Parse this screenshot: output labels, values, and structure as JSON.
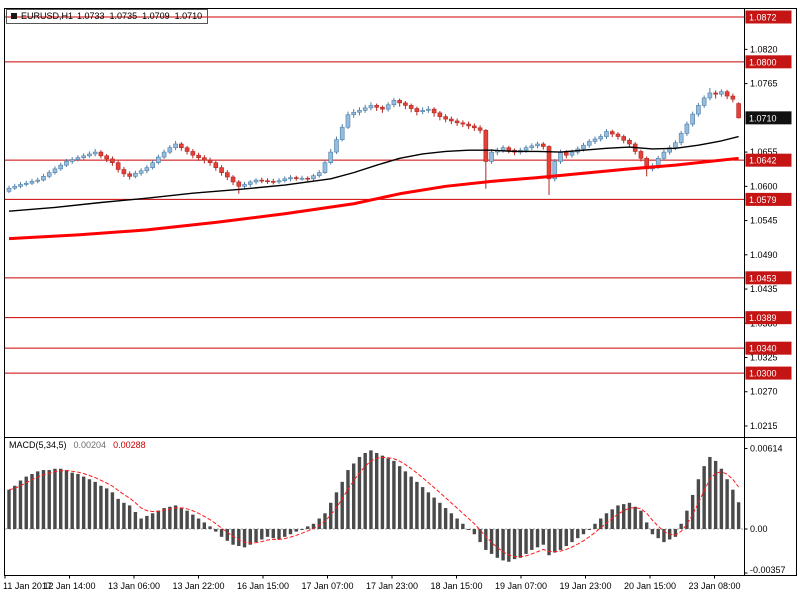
{
  "header": {
    "symbol": "EURUSD,H1",
    "open": "1.0733",
    "high": "1.0735",
    "low": "1.0709",
    "close": "1.0710"
  },
  "indicator": {
    "name": "MACD(5,34,5)",
    "value": "0.00204",
    "signal": "0.00288"
  },
  "colors": {
    "level": "#cc0000",
    "level_badge": "#c41414",
    "current_badge": "#111111",
    "bull_fill": "#93bcde",
    "bull_stroke": "#4f7ea6",
    "bear_fill": "#e24038",
    "bear_stroke": "#b22622",
    "ma_black": "#000000",
    "ma_red": "#ff0000",
    "hist": "#4a4a4a",
    "signal": "#ff1a1a",
    "axis_text": "#000000",
    "frame": "#000000",
    "zero_line": "#aaaaaa"
  },
  "chart_data": [
    {
      "type": "candlestick",
      "symbol": "EURUSD",
      "timeframe": "H1",
      "grid": false,
      "ylim": [
        1.0197,
        1.0886
      ],
      "y_ticks": [
        1.082,
        1.0765,
        1.0655,
        1.06,
        1.0545,
        1.049,
        1.0435,
        1.038,
        1.0325,
        1.027,
        1.0215
      ],
      "levels": [
        1.0872,
        1.08,
        1.0642,
        1.0579,
        1.0453,
        1.0389,
        1.034,
        1.03
      ],
      "current_price": 1.071,
      "x_labels": [
        "11 Jan 2017",
        "12 Jan 14:00",
        "13 Jan 06:00",
        "13 Jan 22:00",
        "16 Jan 15:00",
        "17 Jan 07:00",
        "17 Jan 23:00",
        "18 Jan 15:00",
        "19 Jan 07:00",
        "19 Jan 23:00",
        "20 Jan 15:00",
        "23 Jan 08:00"
      ],
      "ma_black": {
        "name": "moving-average-fast-black",
        "points": [
          [
            0,
            1.056
          ],
          [
            8,
            1.0566
          ],
          [
            16,
            1.0574
          ],
          [
            24,
            1.0581
          ],
          [
            32,
            1.0589
          ],
          [
            40,
            1.0595
          ],
          [
            48,
            1.0602
          ],
          [
            56,
            1.0612
          ],
          [
            60,
            1.0622
          ],
          [
            64,
            1.0634
          ],
          [
            68,
            1.0645
          ],
          [
            72,
            1.0652
          ],
          [
            76,
            1.0656
          ],
          [
            80,
            1.0658
          ],
          [
            84,
            1.0658
          ],
          [
            88,
            1.0656
          ],
          [
            92,
            1.0656
          ],
          [
            96,
            1.0655
          ],
          [
            100,
            1.0658
          ],
          [
            104,
            1.0661
          ],
          [
            108,
            1.0663
          ],
          [
            112,
            1.066
          ],
          [
            116,
            1.0661
          ],
          [
            120,
            1.0666
          ],
          [
            124,
            1.0673
          ],
          [
            127,
            1.068
          ]
        ]
      },
      "ma_red": {
        "name": "moving-average-slow-red",
        "points": [
          [
            0,
            1.0516
          ],
          [
            12,
            1.0522
          ],
          [
            24,
            1.053
          ],
          [
            36,
            1.0542
          ],
          [
            48,
            1.0556
          ],
          [
            60,
            1.0572
          ],
          [
            68,
            1.0588
          ],
          [
            76,
            1.06
          ],
          [
            84,
            1.0608
          ],
          [
            92,
            1.0614
          ],
          [
            100,
            1.0621
          ],
          [
            108,
            1.0628
          ],
          [
            116,
            1.0634
          ],
          [
            122,
            1.064
          ],
          [
            127,
            1.0645
          ]
        ]
      },
      "ohlc": [
        [
          1.0592,
          1.0601,
          1.0589,
          1.0597
        ],
        [
          1.0597,
          1.0604,
          1.0594,
          1.06
        ],
        [
          1.06,
          1.0607,
          1.0597,
          1.0603
        ],
        [
          1.0603,
          1.0609,
          1.06,
          1.0605
        ],
        [
          1.0605,
          1.0612,
          1.0602,
          1.0608
        ],
        [
          1.0608,
          1.0614,
          1.0605,
          1.061
        ],
        [
          1.061,
          1.062,
          1.0608,
          1.0616
        ],
        [
          1.0616,
          1.0626,
          1.0613,
          1.0622
        ],
        [
          1.0622,
          1.0632,
          1.0619,
          1.0628
        ],
        [
          1.0628,
          1.0638,
          1.0625,
          1.0634
        ],
        [
          1.0634,
          1.0644,
          1.0631,
          1.064
        ],
        [
          1.064,
          1.0647,
          1.0636,
          1.0643
        ],
        [
          1.0643,
          1.065,
          1.064,
          1.0646
        ],
        [
          1.0646,
          1.0653,
          1.0643,
          1.0649
        ],
        [
          1.0649,
          1.0656,
          1.0646,
          1.0652
        ],
        [
          1.0652,
          1.066,
          1.0648,
          1.0655
        ],
        [
          1.0655,
          1.0658,
          1.0645,
          1.0649
        ],
        [
          1.0649,
          1.0652,
          1.0639,
          1.0644
        ],
        [
          1.0644,
          1.0648,
          1.0633,
          1.0638
        ],
        [
          1.0638,
          1.0641,
          1.0622,
          1.0627
        ],
        [
          1.0627,
          1.0631,
          1.0615,
          1.062
        ],
        [
          1.062,
          1.0624,
          1.0611,
          1.0616
        ],
        [
          1.0616,
          1.0625,
          1.0613,
          1.0621
        ],
        [
          1.0621,
          1.0629,
          1.0617,
          1.0625
        ],
        [
          1.0625,
          1.0634,
          1.0621,
          1.063
        ],
        [
          1.063,
          1.0642,
          1.0627,
          1.0638
        ],
        [
          1.0638,
          1.0651,
          1.0635,
          1.0647
        ],
        [
          1.0647,
          1.0659,
          1.0644,
          1.0655
        ],
        [
          1.0655,
          1.0666,
          1.0652,
          1.0662
        ],
        [
          1.0662,
          1.0673,
          1.0658,
          1.0668
        ],
        [
          1.0668,
          1.0671,
          1.0657,
          1.0662
        ],
        [
          1.0662,
          1.0665,
          1.0651,
          1.0656
        ],
        [
          1.0656,
          1.066,
          1.0645,
          1.065
        ],
        [
          1.065,
          1.0654,
          1.0641,
          1.0646
        ],
        [
          1.0646,
          1.065,
          1.0637,
          1.0642
        ],
        [
          1.0642,
          1.0646,
          1.0633,
          1.0638
        ],
        [
          1.0638,
          1.0641,
          1.0625,
          1.063
        ],
        [
          1.063,
          1.0634,
          1.0617,
          1.0622
        ],
        [
          1.0622,
          1.0626,
          1.061,
          1.0615
        ],
        [
          1.0615,
          1.0618,
          1.0602,
          1.0607
        ],
        [
          1.0607,
          1.061,
          1.0588,
          1.06
        ],
        [
          1.06,
          1.0607,
          1.0596,
          1.0603
        ],
        [
          1.0603,
          1.061,
          1.0599,
          1.0607
        ],
        [
          1.0607,
          1.0613,
          1.0603,
          1.061
        ],
        [
          1.061,
          1.0614,
          1.0605,
          1.0609
        ],
        [
          1.0609,
          1.0613,
          1.0604,
          1.0608
        ],
        [
          1.0608,
          1.0612,
          1.0603,
          1.0607
        ],
        [
          1.0607,
          1.0613,
          1.0604,
          1.0609
        ],
        [
          1.0609,
          1.0616,
          1.0606,
          1.0612
        ],
        [
          1.0612,
          1.0618,
          1.0608,
          1.0614
        ],
        [
          1.0614,
          1.0617,
          1.0609,
          1.0613
        ],
        [
          1.0613,
          1.0617,
          1.0609,
          1.0613
        ],
        [
          1.0613,
          1.0616,
          1.0607,
          1.0612
        ],
        [
          1.0612,
          1.062,
          1.0609,
          1.0617
        ],
        [
          1.0617,
          1.0626,
          1.0614,
          1.0622
        ],
        [
          1.0622,
          1.0642,
          1.062,
          1.0638
        ],
        [
          1.0638,
          1.066,
          1.0635,
          1.0655
        ],
        [
          1.0655,
          1.068,
          1.0652,
          1.0675
        ],
        [
          1.0675,
          1.07,
          1.0672,
          1.0695
        ],
        [
          1.0695,
          1.072,
          1.0692,
          1.0715
        ],
        [
          1.0715,
          1.0724,
          1.071,
          1.0719
        ],
        [
          1.0719,
          1.0727,
          1.0714,
          1.0722
        ],
        [
          1.0722,
          1.0731,
          1.0718,
          1.0726
        ],
        [
          1.0726,
          1.0735,
          1.0722,
          1.073
        ],
        [
          1.073,
          1.0733,
          1.0721,
          1.0727
        ],
        [
          1.0727,
          1.073,
          1.0718,
          1.0724
        ],
        [
          1.0724,
          1.0735,
          1.072,
          1.0731
        ],
        [
          1.0731,
          1.0742,
          1.0727,
          1.0738
        ],
        [
          1.0738,
          1.0741,
          1.0728,
          1.0734
        ],
        [
          1.0734,
          1.0737,
          1.0724,
          1.073
        ],
        [
          1.073,
          1.0733,
          1.0719,
          1.0725
        ],
        [
          1.0725,
          1.0728,
          1.0714,
          1.072
        ],
        [
          1.072,
          1.0727,
          1.0716,
          1.0722
        ],
        [
          1.0722,
          1.0729,
          1.0718,
          1.0724
        ],
        [
          1.0724,
          1.0727,
          1.0712,
          1.0718
        ],
        [
          1.0718,
          1.0721,
          1.0706,
          1.0712
        ],
        [
          1.0712,
          1.0716,
          1.0703,
          1.0708
        ],
        [
          1.0708,
          1.0712,
          1.07,
          1.0705
        ],
        [
          1.0705,
          1.0709,
          1.0697,
          1.0702
        ],
        [
          1.0702,
          1.0706,
          1.0695,
          1.07
        ],
        [
          1.07,
          1.0704,
          1.0692,
          1.0697
        ],
        [
          1.0697,
          1.0701,
          1.0689,
          1.0694
        ],
        [
          1.0694,
          1.0698,
          1.0685,
          1.069
        ],
        [
          1.069,
          1.0692,
          1.0596,
          1.064
        ],
        [
          1.064,
          1.066,
          1.0636,
          1.0655
        ],
        [
          1.0655,
          1.0662,
          1.065,
          1.0658
        ],
        [
          1.0658,
          1.0666,
          1.0654,
          1.0662
        ],
        [
          1.0662,
          1.0665,
          1.0653,
          1.0658
        ],
        [
          1.0658,
          1.0661,
          1.065,
          1.0655
        ],
        [
          1.0655,
          1.0662,
          1.0651,
          1.0658
        ],
        [
          1.0658,
          1.0666,
          1.0654,
          1.0662
        ],
        [
          1.0662,
          1.0669,
          1.0658,
          1.0665
        ],
        [
          1.0665,
          1.0672,
          1.0661,
          1.0668
        ],
        [
          1.0668,
          1.0671,
          1.0659,
          1.0664
        ],
        [
          1.0664,
          1.0666,
          1.0586,
          1.0612
        ],
        [
          1.0612,
          1.0644,
          1.0608,
          1.064
        ],
        [
          1.064,
          1.0659,
          1.0636,
          1.0655
        ],
        [
          1.0655,
          1.0658,
          1.0645,
          1.065
        ],
        [
          1.065,
          1.0659,
          1.0646,
          1.0655
        ],
        [
          1.0655,
          1.0664,
          1.0651,
          1.066
        ],
        [
          1.066,
          1.067,
          1.0656,
          1.0666
        ],
        [
          1.0666,
          1.0676,
          1.0662,
          1.0672
        ],
        [
          1.0672,
          1.068,
          1.0668,
          1.0676
        ],
        [
          1.0676,
          1.0684,
          1.0672,
          1.068
        ],
        [
          1.068,
          1.0692,
          1.0676,
          1.0688
        ],
        [
          1.0688,
          1.0691,
          1.0679,
          1.0684
        ],
        [
          1.0684,
          1.0687,
          1.0675,
          1.068
        ],
        [
          1.068,
          1.0683,
          1.0669,
          1.0674
        ],
        [
          1.0674,
          1.0677,
          1.0663,
          1.0668
        ],
        [
          1.0668,
          1.0671,
          1.0651,
          1.0656
        ],
        [
          1.0656,
          1.0659,
          1.064,
          1.0645
        ],
        [
          1.0645,
          1.0648,
          1.0616,
          1.0628
        ],
        [
          1.0628,
          1.0637,
          1.0624,
          1.0632
        ],
        [
          1.0632,
          1.0649,
          1.0628,
          1.0645
        ],
        [
          1.0645,
          1.0659,
          1.0641,
          1.0655
        ],
        [
          1.0655,
          1.0666,
          1.0651,
          1.0662
        ],
        [
          1.0662,
          1.0674,
          1.0658,
          1.067
        ],
        [
          1.067,
          1.0689,
          1.0666,
          1.0685
        ],
        [
          1.0685,
          1.0704,
          1.0681,
          1.07
        ],
        [
          1.07,
          1.072,
          1.0696,
          1.0716
        ],
        [
          1.0716,
          1.0734,
          1.0712,
          1.073
        ],
        [
          1.073,
          1.0746,
          1.0726,
          1.0742
        ],
        [
          1.0742,
          1.0758,
          1.0738,
          1.075
        ],
        [
          1.075,
          1.0754,
          1.0741,
          1.0748
        ],
        [
          1.0748,
          1.0756,
          1.0744,
          1.0752
        ],
        [
          1.0752,
          1.0755,
          1.074,
          1.0745
        ],
        [
          1.0745,
          1.0749,
          1.0735,
          1.074
        ],
        [
          1.0733,
          1.0735,
          1.0709,
          1.071
        ]
      ]
    },
    {
      "type": "bar",
      "name": "MACD(5,34,5)",
      "grid": false,
      "ylim": [
        -0.0037,
        0.0069
      ],
      "axis": [
        {
          "v": 0.00614,
          "label": "0.00614"
        },
        {
          "v": 0,
          "label": "0.00"
        },
        {
          "v": -0.00357,
          "label": "-0.00357"
        }
      ],
      "current_values": {
        "macd": 0.00204,
        "signal": 0.00288
      },
      "values": [
        0.003,
        0.0033,
        0.0037,
        0.004,
        0.0042,
        0.0044,
        0.0045,
        0.0045,
        0.0046,
        0.0046,
        0.0045,
        0.0043,
        0.0042,
        0.004,
        0.0038,
        0.0036,
        0.0033,
        0.0031,
        0.0028,
        0.0023,
        0.002,
        0.0018,
        0.0013,
        0.0008,
        0.001,
        0.0012,
        0.0014,
        0.0016,
        0.0017,
        0.0018,
        0.0016,
        0.0014,
        0.0011,
        0.0008,
        0.0005,
        0.0002,
        -0.0002,
        -0.0006,
        -0.0009,
        -0.0012,
        -0.0013,
        -0.0014,
        -0.0012,
        -0.001,
        -0.0008,
        -0.0006,
        -0.0007,
        -0.0008,
        -0.0006,
        -0.0004,
        -0.0002,
        0.0,
        0.0002,
        0.0004,
        0.0008,
        0.0012,
        0.002,
        0.0028,
        0.0036,
        0.0045,
        0.005,
        0.0055,
        0.0058,
        0.006,
        0.0058,
        0.0056,
        0.0054,
        0.0052,
        0.0048,
        0.0044,
        0.004,
        0.0036,
        0.0032,
        0.0028,
        0.0024,
        0.002,
        0.0016,
        0.0012,
        0.0008,
        0.0004,
        0.0,
        -0.0004,
        -0.001,
        -0.0016,
        -0.0019,
        -0.0022,
        -0.0024,
        -0.0025,
        -0.0023,
        -0.0022,
        -0.0019,
        -0.0016,
        -0.0014,
        -0.0012,
        -0.002,
        -0.0018,
        -0.0016,
        -0.0013,
        -0.001,
        -0.0007,
        -0.0004,
        0.0,
        0.0004,
        0.0008,
        0.0012,
        0.0015,
        0.0018,
        0.0019,
        0.002,
        0.0017,
        0.0014,
        0.0005,
        -0.0004,
        -0.0007,
        -0.001,
        -0.0008,
        -0.0006,
        0.0004,
        0.0014,
        0.0026,
        0.0038,
        0.0048,
        0.0055,
        0.0052,
        0.0046,
        0.0038,
        0.003,
        0.00204
      ]
    }
  ]
}
